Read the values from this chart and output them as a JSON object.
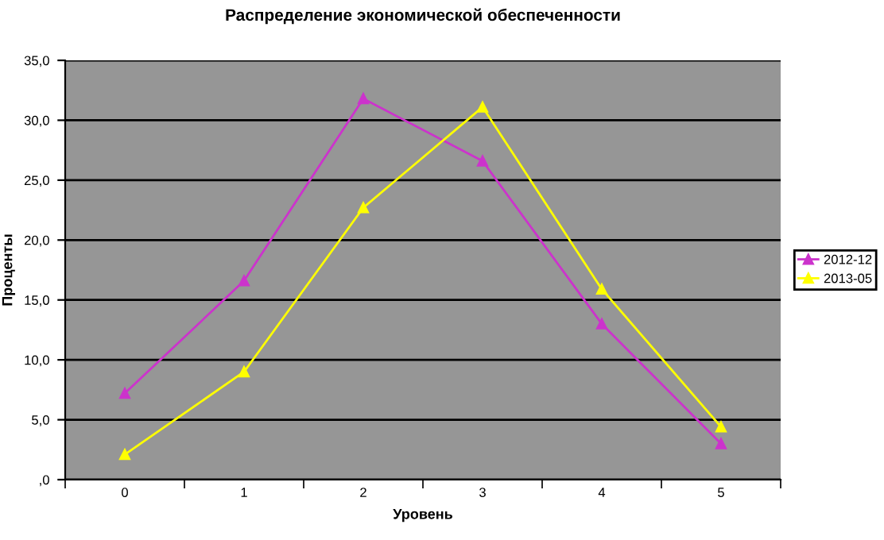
{
  "chart_data": {
    "type": "line",
    "title": "Распределение экономической обеспеченности",
    "xlabel": "Уровень",
    "ylabel": "Проценты",
    "categories": [
      "0",
      "1",
      "2",
      "3",
      "4",
      "5"
    ],
    "series": [
      {
        "name": "2012-12",
        "color": "#cc33cc",
        "values": [
          7.2,
          16.6,
          31.8,
          26.6,
          13.0,
          3.0
        ]
      },
      {
        "name": "2013-05",
        "color": "#ffff00",
        "values": [
          2.1,
          9.0,
          22.7,
          31.1,
          15.9,
          4.4
        ]
      }
    ],
    "ylim": [
      0,
      35
    ],
    "yticks": [
      {
        "value": 0,
        "label": ",0"
      },
      {
        "value": 5,
        "label": "5,0"
      },
      {
        "value": 10,
        "label": "10,0"
      },
      {
        "value": 15,
        "label": "15,0"
      },
      {
        "value": 20,
        "label": "20,0"
      },
      {
        "value": 25,
        "label": "25,0"
      },
      {
        "value": 30,
        "label": "30,0"
      },
      {
        "value": 35,
        "label": "35,0"
      }
    ],
    "grid": "y",
    "legend": "right",
    "marker": "triangle",
    "line_style": "solid"
  }
}
